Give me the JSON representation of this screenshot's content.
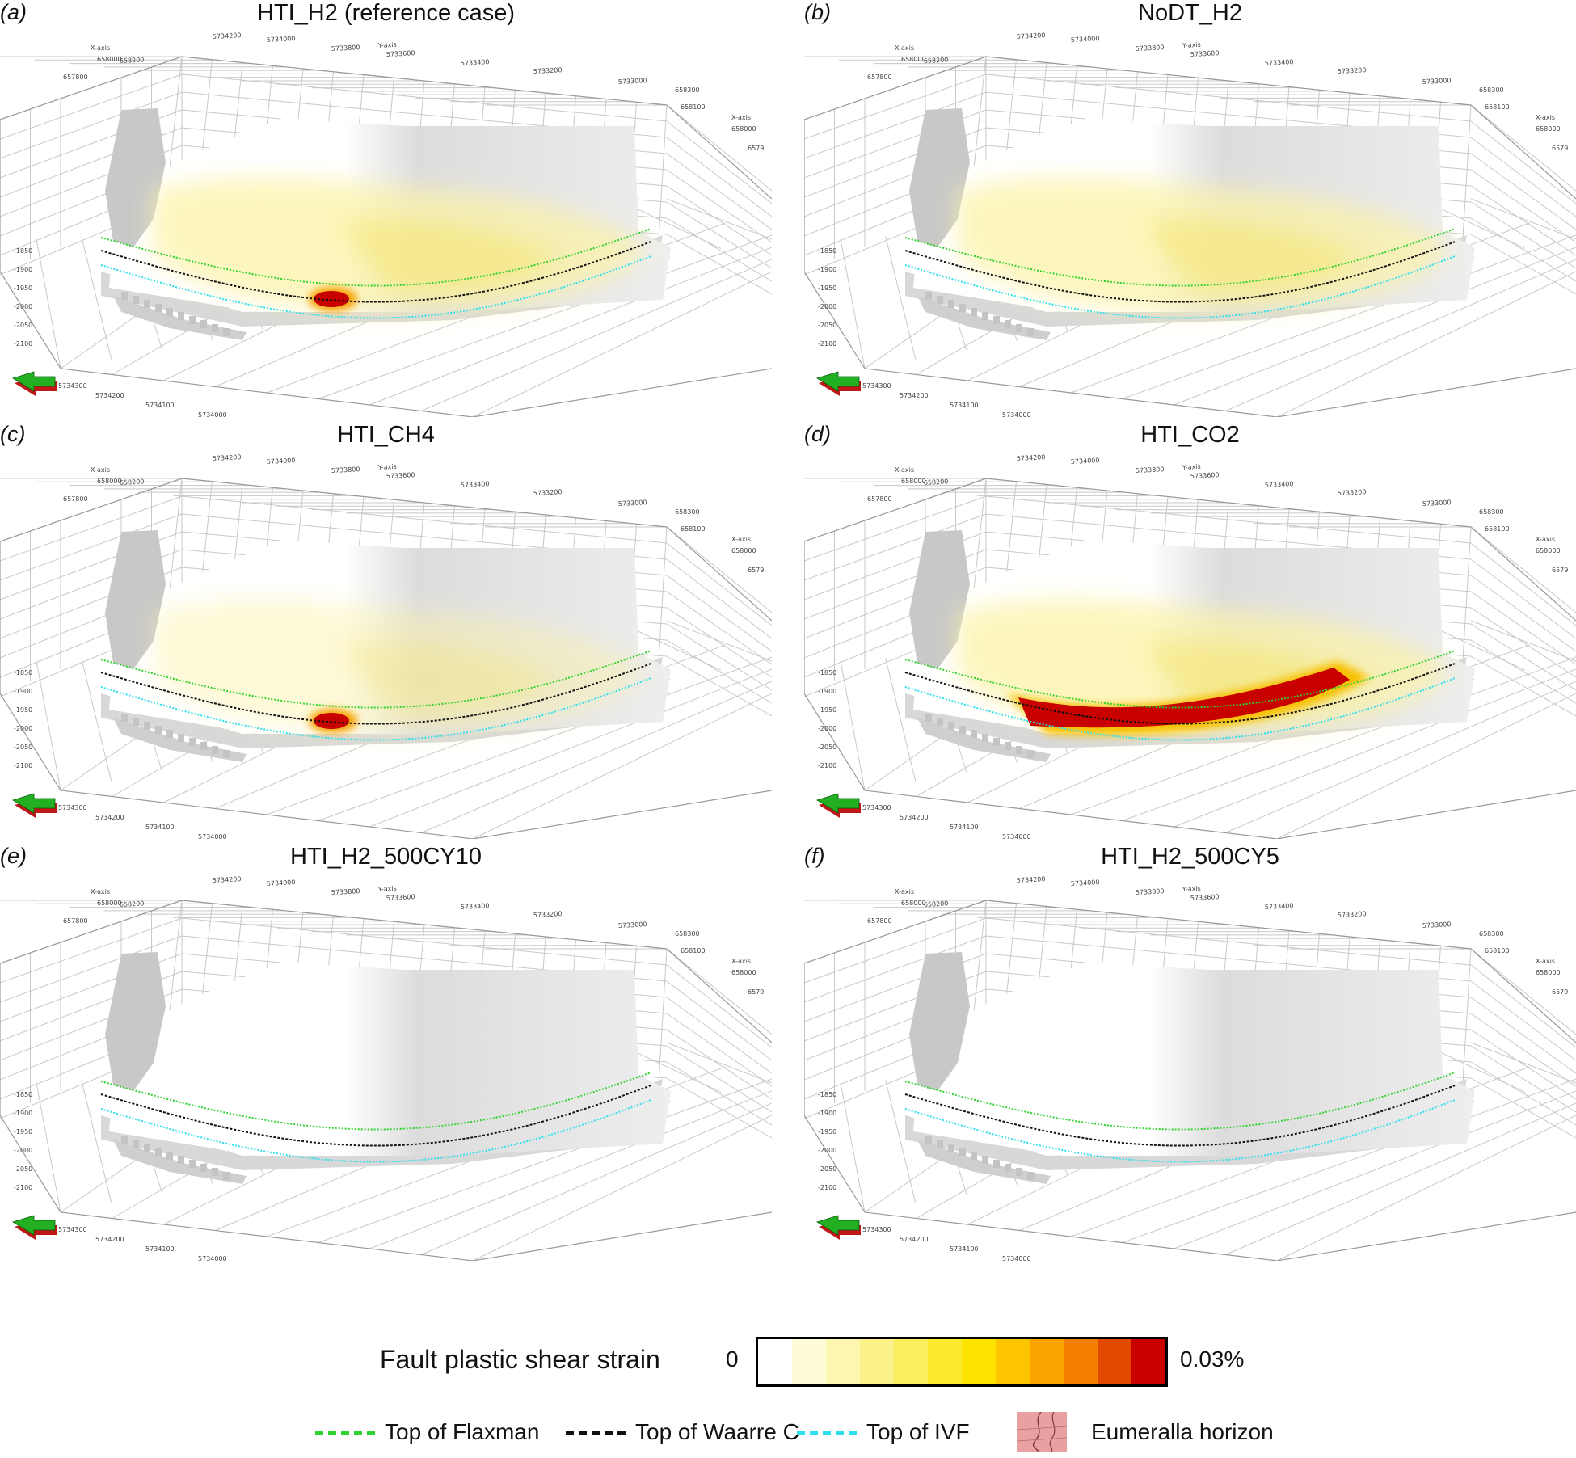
{
  "panels": [
    {
      "letter": "(a)",
      "title": "HTI_H2 (reference case)",
      "heat": "ref"
    },
    {
      "letter": "(b)",
      "title": "NoDT_H2",
      "heat": "none"
    },
    {
      "letter": "(c)",
      "title": "HTI_CH4",
      "heat": "small"
    },
    {
      "letter": "(d)",
      "title": "HTI_CO2",
      "heat": "large"
    },
    {
      "letter": "(e)",
      "title": "HTI_H2_500CY10",
      "heat": "blank"
    },
    {
      "letter": "(f)",
      "title": "HTI_H2_500CY5",
      "heat": "blank"
    }
  ],
  "axis_labels": {
    "top": [
      "658200",
      "5734200",
      "5734000",
      "5733800",
      "Y-axis",
      "5733600",
      "5733400",
      "5733200",
      "5733000"
    ],
    "x_axis": "X-axis",
    "left_x": [
      "658000",
      "657800"
    ],
    "right_x": [
      "658300",
      "658100",
      "658000",
      "6579"
    ],
    "depths": [
      "-1850",
      "-1900",
      "-1950",
      "-2000",
      "-2050",
      "-2100"
    ],
    "bottom": [
      "5734300",
      "5734200",
      "5734100",
      "5734000"
    ]
  },
  "colorbar": {
    "title": "Fault plastic shear strain",
    "min_label": "0",
    "max_label": "0.03%",
    "colors": [
      "#ffffff",
      "#fefbd8",
      "#fdf6b0",
      "#fcf28a",
      "#fbee5c",
      "#fbe92e",
      "#fde300",
      "#fdc400",
      "#fba400",
      "#f58000",
      "#e24a00",
      "#c80000"
    ]
  },
  "legend": [
    {
      "label": "Top of Flaxman",
      "color": "#2fd22f"
    },
    {
      "label": "Top of Waarre C",
      "color": "#111111"
    },
    {
      "label": "Top of IVF",
      "color": "#2ee0ee"
    },
    {
      "label": "Eumeralla horizon",
      "color": "#e8a0a0"
    }
  ]
}
